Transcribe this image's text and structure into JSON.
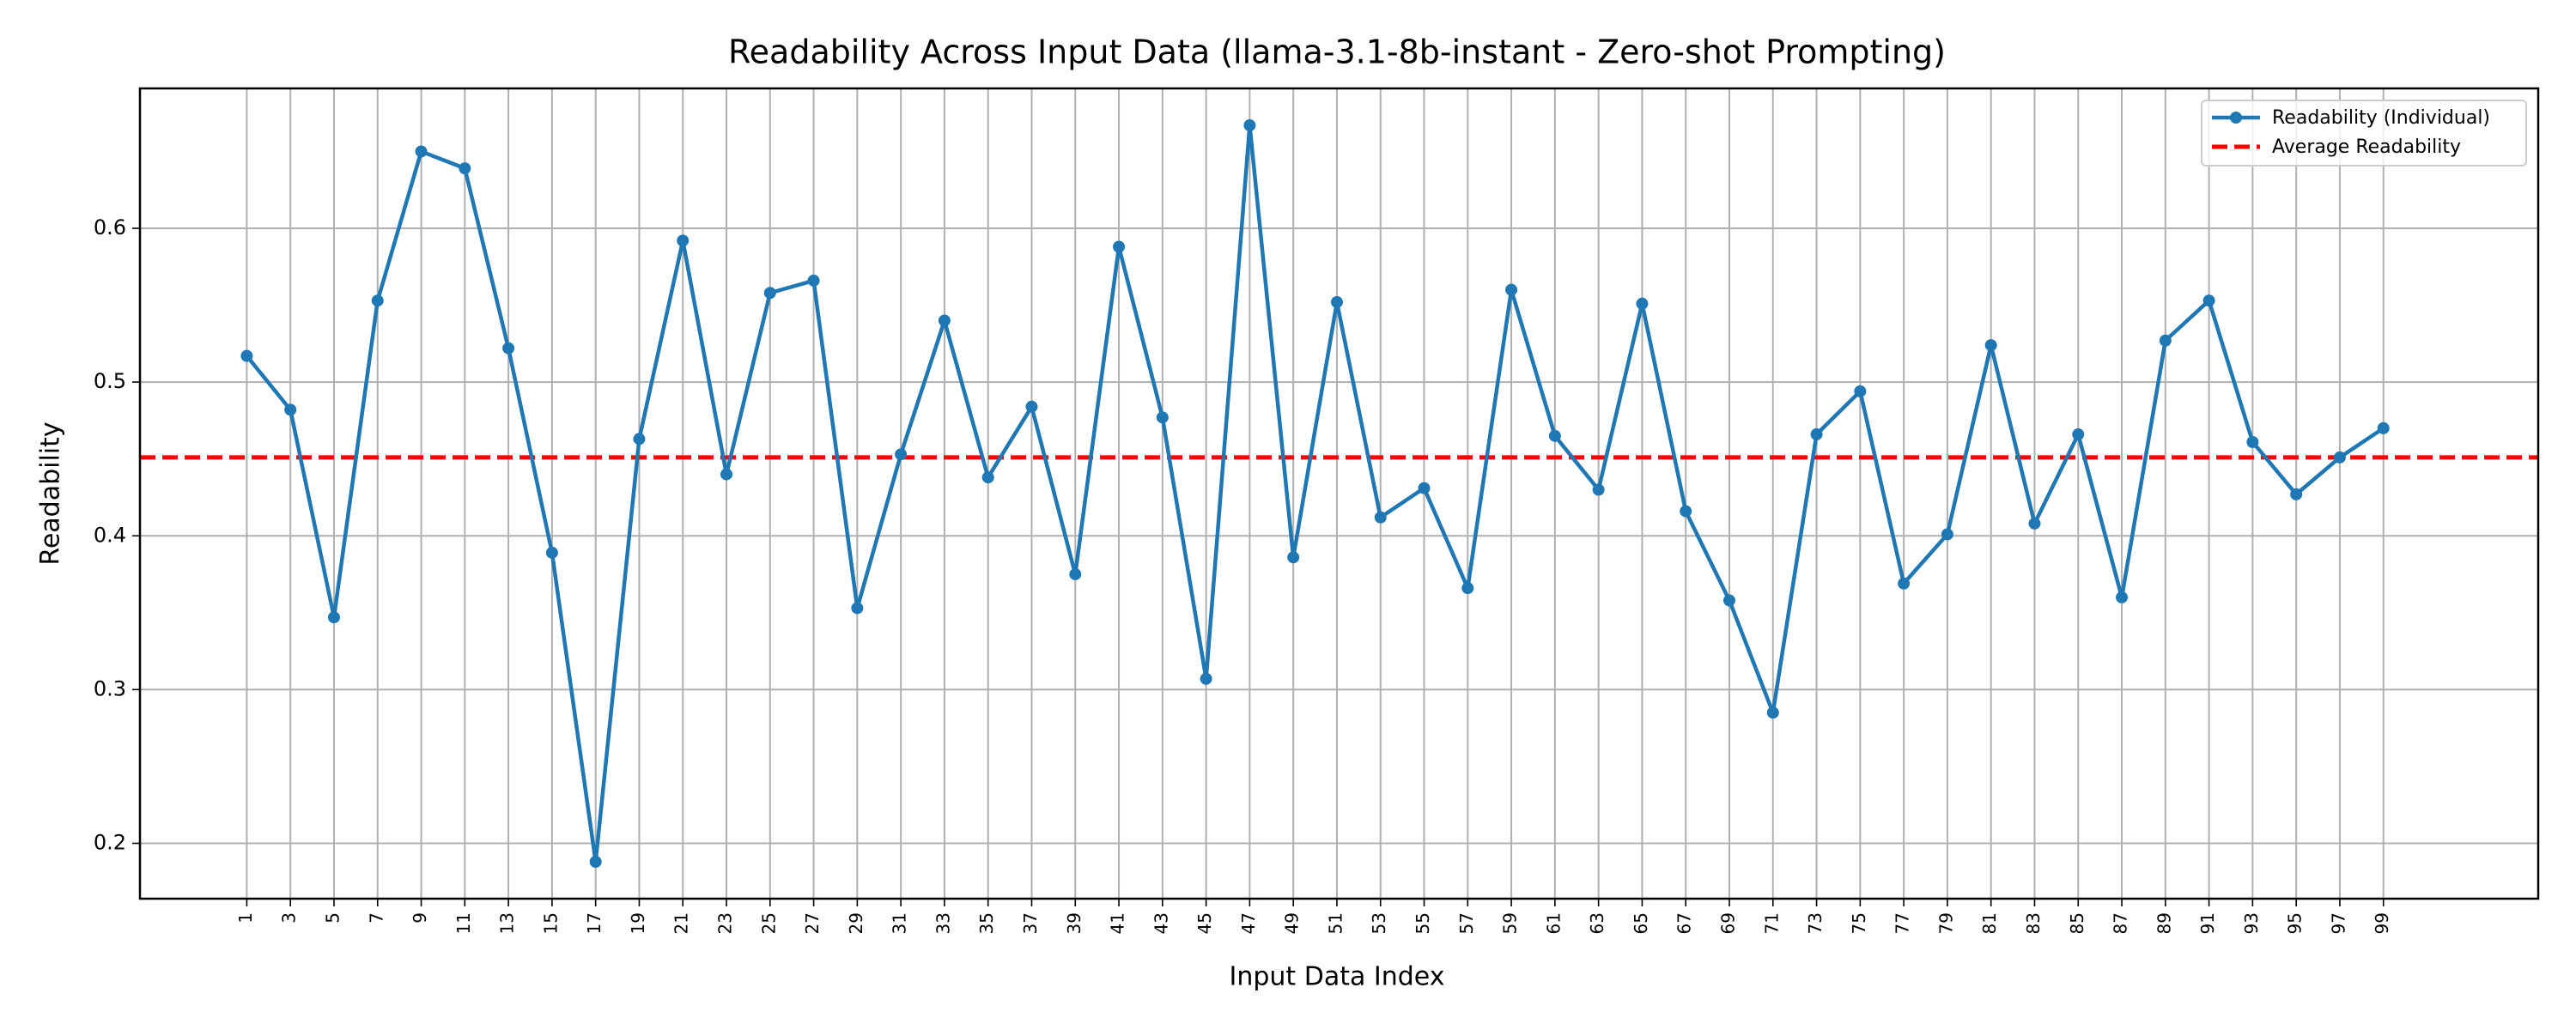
{
  "chart_data": {
    "type": "line",
    "title": "Readability Across Input Data (llama-3.1-8b-instant - Zero-shot Prompting)",
    "xlabel": "Input Data Index",
    "ylabel": "Readability",
    "x": [
      1,
      3,
      5,
      7,
      9,
      11,
      13,
      15,
      17,
      19,
      21,
      23,
      25,
      27,
      29,
      31,
      33,
      35,
      37,
      39,
      41,
      43,
      45,
      47,
      49,
      51,
      53,
      55,
      57,
      59,
      61,
      63,
      65,
      67,
      69,
      71,
      73,
      75,
      77,
      79,
      81,
      83,
      85,
      87,
      89,
      91,
      93,
      95,
      97,
      99
    ],
    "series": [
      {
        "name": "Readability (Individual)",
        "color": "#1f77b4",
        "values": [
          0.517,
          0.482,
          0.347,
          0.553,
          0.65,
          0.639,
          0.522,
          0.389,
          0.188,
          0.463,
          0.592,
          0.44,
          0.558,
          0.566,
          0.353,
          0.453,
          0.54,
          0.438,
          0.484,
          0.375,
          0.588,
          0.477,
          0.307,
          0.667,
          0.386,
          0.552,
          0.412,
          0.431,
          0.366,
          0.56,
          0.465,
          0.43,
          0.551,
          0.416,
          0.358,
          0.285,
          0.466,
          0.494,
          0.369,
          0.401,
          0.524,
          0.408,
          0.466,
          0.36,
          0.527,
          0.553,
          0.461,
          0.427,
          0.451,
          0.47
        ]
      }
    ],
    "average_line": {
      "name": "Average Readability",
      "value": 0.451,
      "color": "#ff0000"
    },
    "xlim": [
      -3.9,
      106.1
    ],
    "ylim": [
      0.164,
      0.691
    ],
    "xticks": [
      1,
      3,
      5,
      7,
      9,
      11,
      13,
      15,
      17,
      19,
      21,
      23,
      25,
      27,
      29,
      31,
      33,
      35,
      37,
      39,
      41,
      43,
      45,
      47,
      49,
      51,
      53,
      55,
      57,
      59,
      61,
      63,
      65,
      67,
      69,
      71,
      73,
      75,
      77,
      79,
      81,
      83,
      85,
      87,
      89,
      91,
      93,
      95,
      97,
      99
    ],
    "yticks": [
      0.2,
      0.3,
      0.4,
      0.5,
      0.6
    ],
    "grid": true,
    "legend": "upper right"
  }
}
